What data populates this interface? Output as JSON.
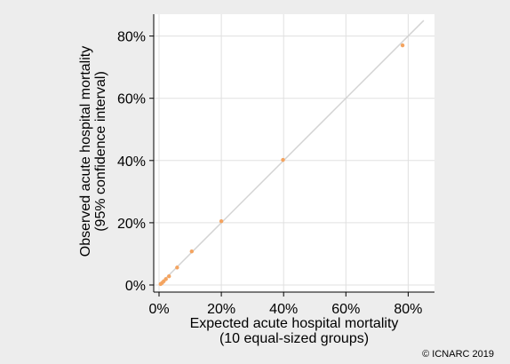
{
  "chart_data": {
    "type": "scatter",
    "x_axis": {
      "title_lines": [
        "Expected acute hospital mortality",
        "(10 equal-sized groups)"
      ],
      "ticks": [
        0,
        20,
        40,
        60,
        80
      ],
      "tick_labels": [
        "0%",
        "20%",
        "40%",
        "60%",
        "80%"
      ],
      "range": [
        0,
        85
      ]
    },
    "y_axis": {
      "title_lines": [
        "Observed acute hospital mortality",
        "(95% confidence interval)"
      ],
      "ticks": [
        0,
        20,
        40,
        60,
        80
      ],
      "tick_labels": [
        "0%",
        "20%",
        "40%",
        "60%",
        "80%"
      ],
      "range": [
        0,
        87
      ]
    },
    "grid": true,
    "reference_line": "y = x",
    "series": [
      {
        "x": [
          0.5,
          1.0,
          1.5,
          2.2,
          3.2,
          5.8,
          10.5,
          20.0,
          39.8,
          78.2
        ],
        "y": [
          0.3,
          0.7,
          1.2,
          1.9,
          2.8,
          5.6,
          10.8,
          20.5,
          40.2,
          77.0
        ]
      }
    ],
    "colors": {
      "points": "#f4a460",
      "reference_line": "#d3d3d3",
      "grid": "#e0e0e0",
      "plot_background": "#ffffff",
      "page_background": "#ededed",
      "axis": "#000000"
    }
  },
  "footer": {
    "copyright": "© ICNARC 2019"
  }
}
